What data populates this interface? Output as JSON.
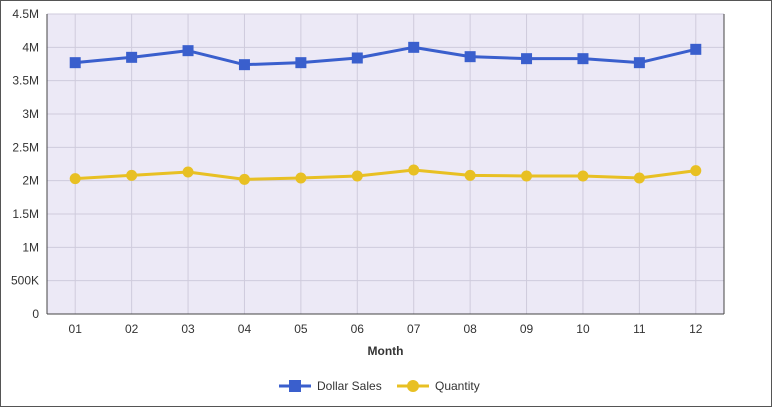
{
  "chart_data": {
    "type": "line",
    "title": "",
    "xlabel": "Month",
    "ylabel": "",
    "categories": [
      "01",
      "02",
      "03",
      "04",
      "05",
      "06",
      "07",
      "08",
      "09",
      "10",
      "11",
      "12"
    ],
    "ylim": [
      0,
      4500000
    ],
    "yticks": [
      0,
      500000,
      1000000,
      1500000,
      2000000,
      2500000,
      3000000,
      3500000,
      4000000,
      4500000
    ],
    "ytick_labels": [
      "0",
      "500K",
      "1M",
      "1.5M",
      "2M",
      "2.5M",
      "3M",
      "3.5M",
      "4M",
      "4.5M"
    ],
    "grid": true,
    "legend_position": "bottom",
    "plot_background": "#ece9f6",
    "series": [
      {
        "name": "Dollar Sales",
        "color": "#3a5fcd",
        "marker": "square",
        "values": [
          3770000,
          3850000,
          3950000,
          3740000,
          3770000,
          3840000,
          4000000,
          3860000,
          3830000,
          3830000,
          3770000,
          3970000
        ]
      },
      {
        "name": "Quantity",
        "color": "#e8c023",
        "marker": "circle",
        "values": [
          2030000,
          2080000,
          2130000,
          2020000,
          2040000,
          2070000,
          2160000,
          2080000,
          2070000,
          2070000,
          2040000,
          2150000
        ]
      }
    ]
  }
}
